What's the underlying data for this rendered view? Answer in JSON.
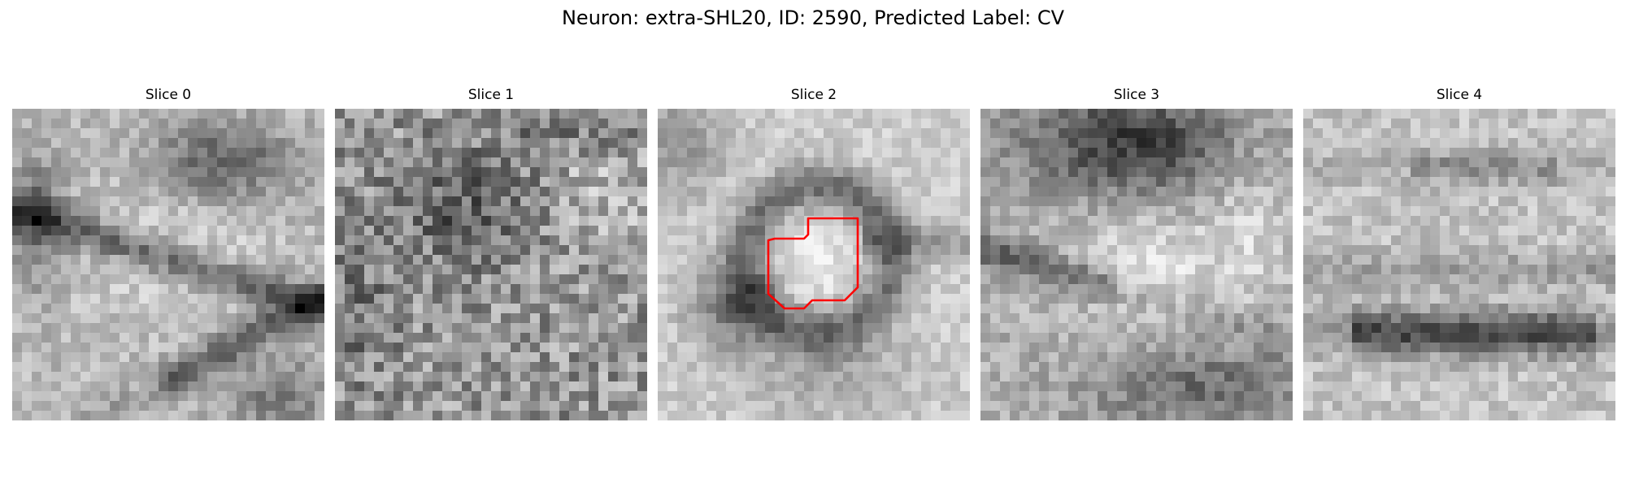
{
  "figure": {
    "title": "Neuron: extra-SHL20, ID: 2590, Predicted Label: CV",
    "colormap": "gray"
  },
  "slices": [
    {
      "title": "Slice 0"
    },
    {
      "title": "Slice 1"
    },
    {
      "title": "Slice 2",
      "outline": {
        "color": "#ff0000"
      }
    },
    {
      "title": "Slice 3"
    },
    {
      "title": "Slice 4"
    }
  ]
}
